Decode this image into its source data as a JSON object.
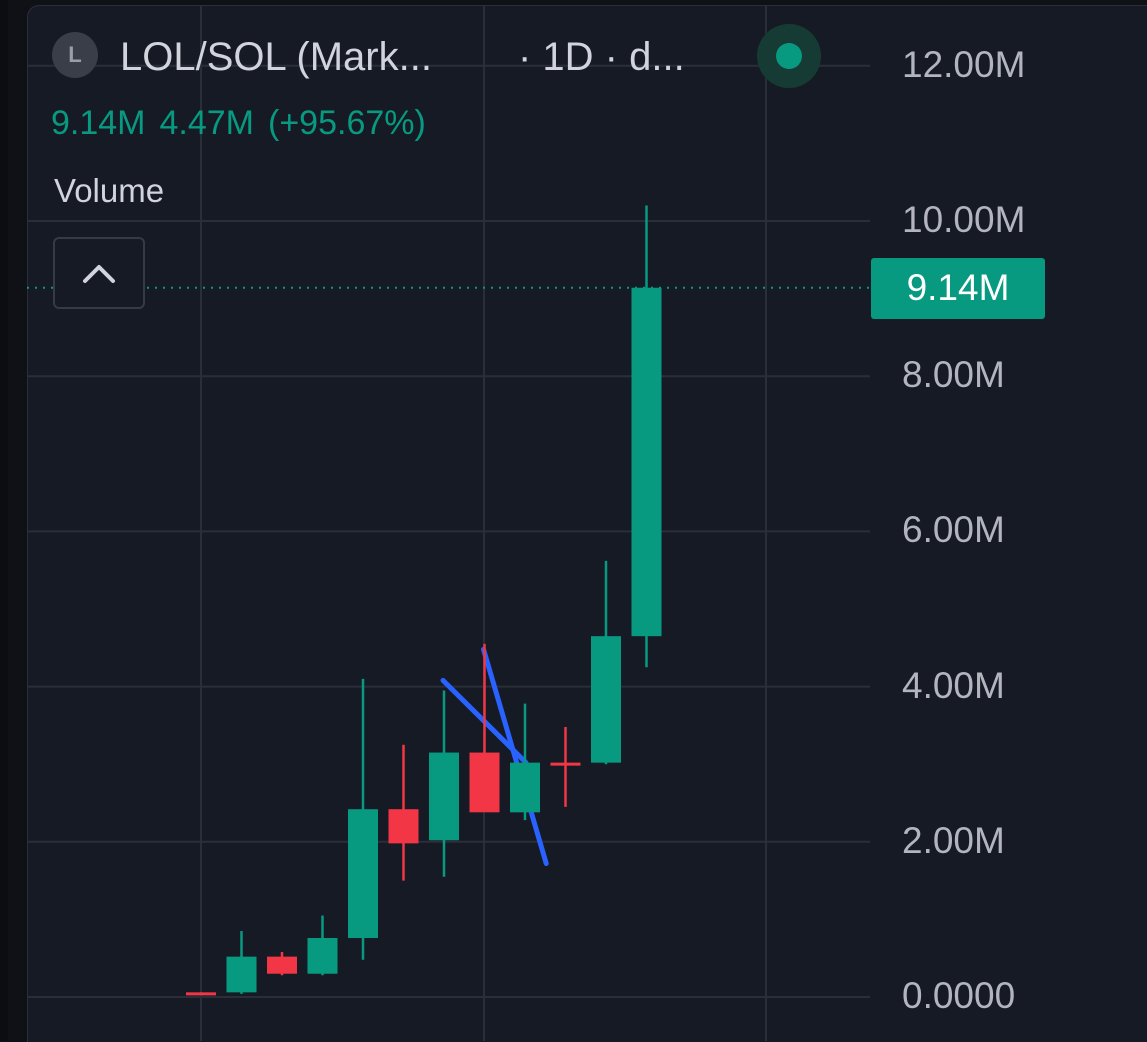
{
  "header": {
    "symbol_initial": "L",
    "symbol_title": "LOL/SOL (Mark...",
    "interval": "· 1D · d...",
    "ohlc": {
      "close": "9.14M",
      "change": "4.47M",
      "change_pct": "(+95.67%)"
    },
    "indicator_label": "Volume"
  },
  "colors": {
    "up": "#089981",
    "down": "#f23645",
    "trendline": "#2962ff",
    "background": "#161a25",
    "grid": "#2a2e39"
  },
  "icons": {
    "live": "green-dot-icon",
    "collapse": "chevron-up-icon"
  },
  "chart_data": {
    "type": "candlestick",
    "ylim": [
      0,
      12.6
    ],
    "y_unit": "M",
    "y_ticks": [
      {
        "value": 0,
        "label": "0.0000"
      },
      {
        "value": 2,
        "label": "2.00M"
      },
      {
        "value": 4,
        "label": "4.00M"
      },
      {
        "value": 6,
        "label": "6.00M"
      },
      {
        "value": 8,
        "label": "8.00M"
      },
      {
        "value": 10,
        "label": "10.00M"
      },
      {
        "value": 12,
        "label": "12.00M"
      }
    ],
    "last_price": {
      "value": 9.14,
      "label": "9.14M"
    },
    "candles": [
      {
        "o": 0.06,
        "h": 0.06,
        "l": 0.04,
        "c": 0.04
      },
      {
        "o": 0.06,
        "h": 0.85,
        "l": 0.04,
        "c": 0.52
      },
      {
        "o": 0.52,
        "h": 0.58,
        "l": 0.28,
        "c": 0.3
      },
      {
        "o": 0.3,
        "h": 1.05,
        "l": 0.28,
        "c": 0.76
      },
      {
        "o": 0.76,
        "h": 4.1,
        "l": 0.48,
        "c": 2.42
      },
      {
        "o": 2.42,
        "h": 3.25,
        "l": 1.5,
        "c": 1.98
      },
      {
        "o": 2.02,
        "h": 3.95,
        "l": 1.55,
        "c": 3.15
      },
      {
        "o": 3.15,
        "h": 4.55,
        "l": 2.4,
        "c": 2.38
      },
      {
        "o": 2.38,
        "h": 3.78,
        "l": 2.28,
        "c": 3.02
      },
      {
        "o": 3.02,
        "h": 3.48,
        "l": 2.45,
        "c": 3.0
      },
      {
        "o": 3.02,
        "h": 5.62,
        "l": 3.0,
        "c": 4.65
      },
      {
        "o": 4.65,
        "h": 10.2,
        "l": 4.25,
        "c": 9.14
      }
    ],
    "trendlines": [
      {
        "from": {
          "candle": 6,
          "value": 4.08
        },
        "to": {
          "candle": 8,
          "value": 3.02
        }
      },
      {
        "from": {
          "candle": 7,
          "value": 4.48
        },
        "to": {
          "candle": 8.5,
          "value": 1.72
        }
      }
    ]
  }
}
